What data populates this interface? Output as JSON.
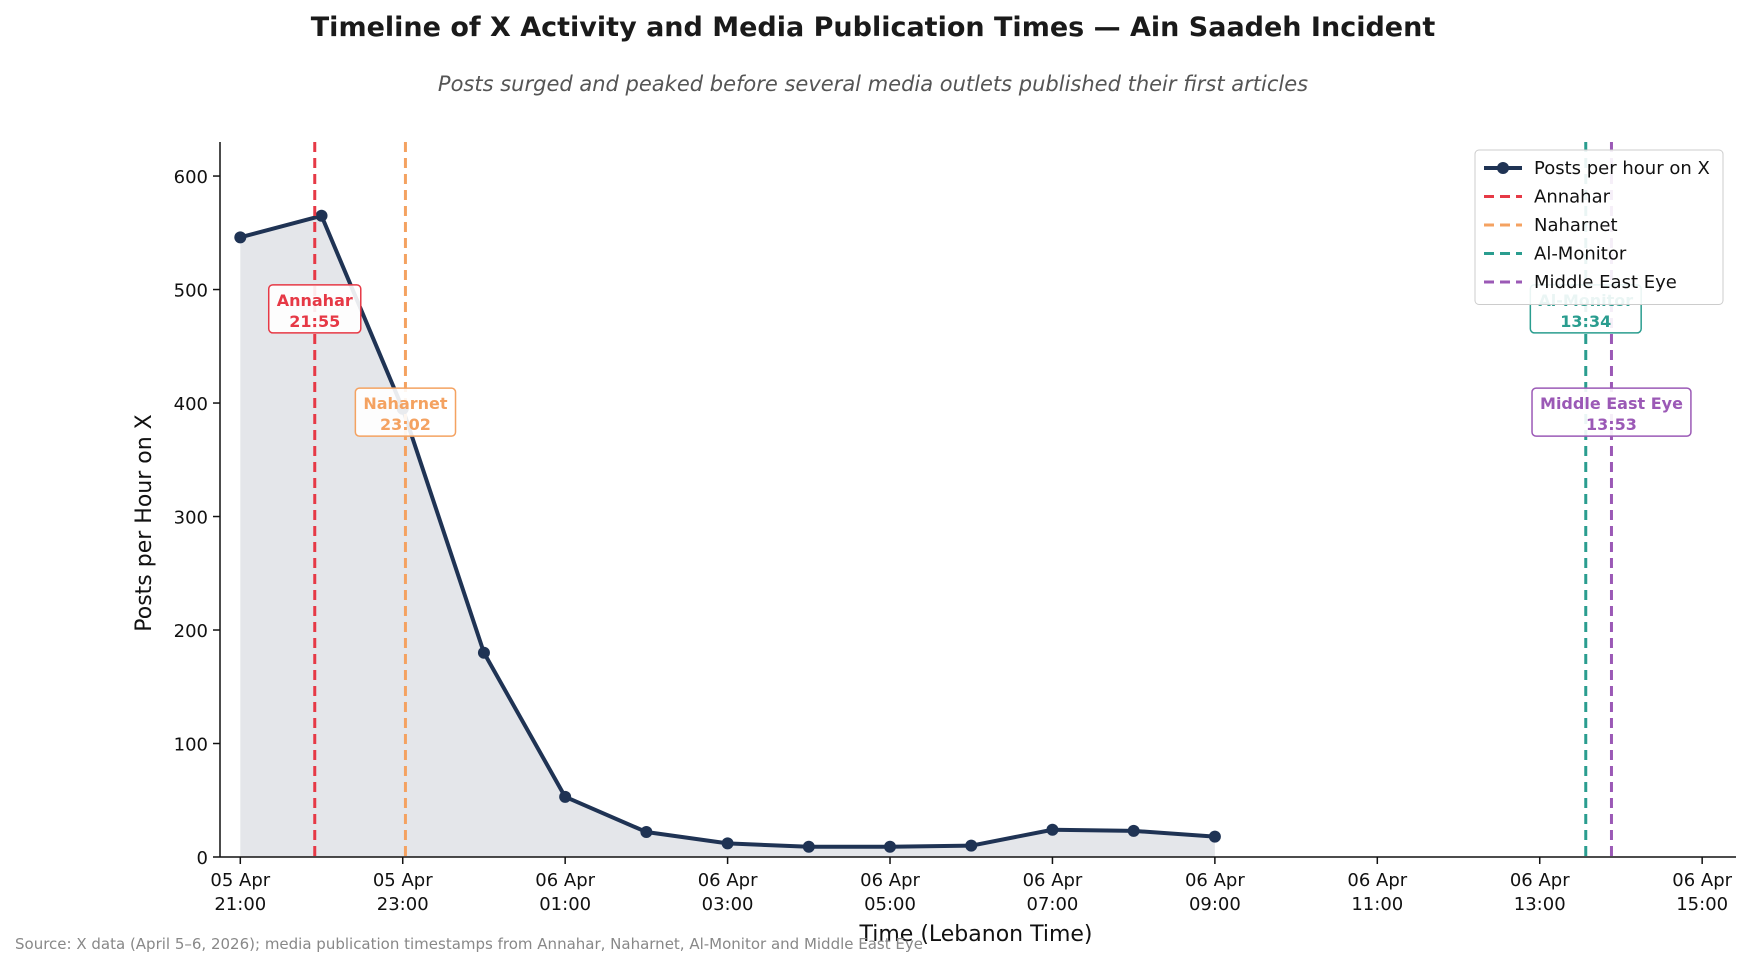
{
  "chart_data": {
    "type": "line",
    "title": "Timeline of X Activity and Media Publication Times — Ain Saadeh Incident",
    "subtitle": "Posts surged and peaked before several media outlets published their first articles",
    "xlabel": "Time (Lebanon Time)",
    "ylabel": "Posts per Hour on X",
    "source": "Source: X data (April 5–6, 2026); media publication timestamps from Annahar, Naharnet, Al-Monitor and Middle East Eye",
    "x_range": [
      "05 Apr 20:45",
      "06 Apr 15:25"
    ],
    "ylim": [
      0,
      630
    ],
    "y_ticks": [
      0,
      100,
      200,
      300,
      400,
      500,
      600
    ],
    "x_ticks": [
      {
        "time": "05 Apr 21:00",
        "line1": "05 Apr",
        "line2": "21:00"
      },
      {
        "time": "05 Apr 23:00",
        "line1": "05 Apr",
        "line2": "23:00"
      },
      {
        "time": "06 Apr 01:00",
        "line1": "06 Apr",
        "line2": "01:00"
      },
      {
        "time": "06 Apr 03:00",
        "line1": "06 Apr",
        "line2": "03:00"
      },
      {
        "time": "06 Apr 05:00",
        "line1": "06 Apr",
        "line2": "05:00"
      },
      {
        "time": "06 Apr 07:00",
        "line1": "06 Apr",
        "line2": "07:00"
      },
      {
        "time": "06 Apr 09:00",
        "line1": "06 Apr",
        "line2": "09:00"
      },
      {
        "time": "06 Apr 11:00",
        "line1": "06 Apr",
        "line2": "11:00"
      },
      {
        "time": "06 Apr 13:00",
        "line1": "06 Apr",
        "line2": "13:00"
      },
      {
        "time": "06 Apr 15:00",
        "line1": "06 Apr",
        "line2": "15:00"
      }
    ],
    "series": [
      {
        "name": "Posts per hour on X",
        "color": "#1f3354",
        "points": [
          {
            "time": "05 Apr 21:00",
            "value": 546
          },
          {
            "time": "05 Apr 22:00",
            "value": 565
          },
          {
            "time": "05 Apr 23:00",
            "value": 395
          },
          {
            "time": "06 Apr 00:00",
            "value": 180
          },
          {
            "time": "06 Apr 01:00",
            "value": 53
          },
          {
            "time": "06 Apr 02:00",
            "value": 22
          },
          {
            "time": "06 Apr 03:00",
            "value": 12
          },
          {
            "time": "06 Apr 04:00",
            "value": 9
          },
          {
            "time": "06 Apr 05:00",
            "value": 9
          },
          {
            "time": "06 Apr 06:00",
            "value": 10
          },
          {
            "time": "06 Apr 07:00",
            "value": 24
          },
          {
            "time": "06 Apr 08:00",
            "value": 23
          },
          {
            "time": "06 Apr 09:00",
            "value": 18
          }
        ]
      }
    ],
    "events": [
      {
        "name": "Annahar",
        "time": "05 Apr 21:55",
        "label_time": "21:55",
        "color": "#e63946",
        "label_y": 483
      },
      {
        "name": "Naharnet",
        "time": "05 Apr 23:02",
        "label_time": "23:02",
        "color": "#f4a261",
        "label_y": 392
      },
      {
        "name": "Al-Monitor",
        "time": "06 Apr 13:34",
        "label_time": "13:34",
        "color": "#2a9d8f",
        "label_y": 483
      },
      {
        "name": "Middle East Eye",
        "time": "06 Apr 13:53",
        "label_time": "13:53",
        "color": "#9b59b6",
        "label_y": 392
      }
    ],
    "legend_position": "top-right",
    "grid": false
  }
}
